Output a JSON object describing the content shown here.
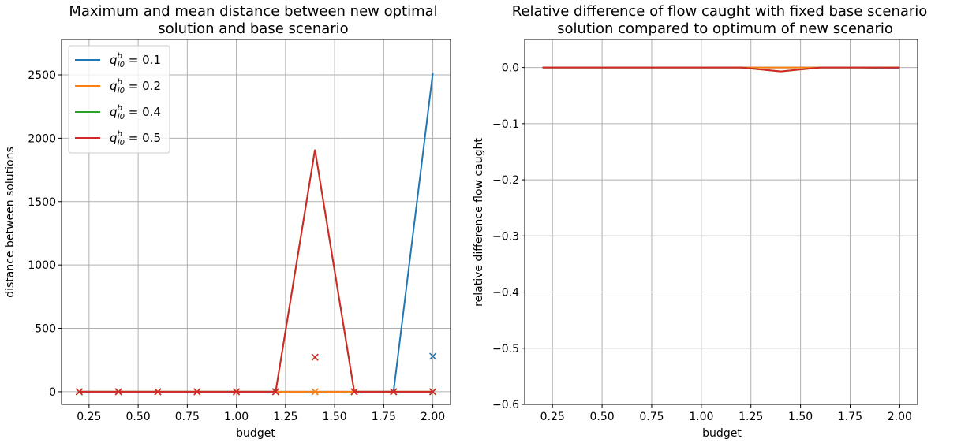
{
  "chart_data": [
    {
      "type": "line",
      "title": [
        "Maximum and mean distance between new optimal",
        "solution and base scenario"
      ],
      "xlabel": "budget",
      "ylabel": "distance between solutions",
      "xlim": [
        0.11,
        2.09
      ],
      "ylim": [
        -100,
        2780
      ],
      "xticks": [
        0.25,
        0.5,
        0.75,
        1.0,
        1.25,
        1.5,
        1.75,
        2.0
      ],
      "xtick_labels": [
        "0.25",
        "0.50",
        "0.75",
        "1.00",
        "1.25",
        "1.50",
        "1.75",
        "2.00"
      ],
      "yticks": [
        0,
        500,
        1000,
        1500,
        2000,
        2500
      ],
      "ytick_labels": [
        "0",
        "500",
        "1000",
        "1500",
        "2000",
        "2500"
      ],
      "grid": true,
      "legend_position": "top-left",
      "x": [
        0.2,
        0.4,
        0.6,
        0.8,
        1.0,
        1.2,
        1.4,
        1.6,
        1.8,
        2.0
      ],
      "series": [
        {
          "name": "0.1",
          "color": "#1f77b4",
          "max_values": [
            0,
            0,
            0,
            0,
            0,
            0,
            0,
            0,
            0,
            2515
          ],
          "mean_values": [
            0,
            0,
            0,
            0,
            0,
            0,
            0,
            0,
            0,
            280
          ]
        },
        {
          "name": "0.2",
          "color": "#ff7f0e",
          "max_values": [
            0,
            0,
            0,
            0,
            0,
            0,
            0,
            0,
            0,
            0
          ],
          "mean_values": [
            0,
            0,
            0,
            0,
            0,
            0,
            0,
            0,
            0,
            0
          ]
        },
        {
          "name": "0.4",
          "color": "#2ca02c",
          "max_values": [
            0,
            0,
            0,
            0,
            0,
            0,
            1910,
            0,
            0,
            0
          ],
          "mean_values": [
            0,
            0,
            0,
            0,
            0,
            0,
            272,
            0,
            0,
            0
          ]
        },
        {
          "name": "0.5",
          "color": "#d62728",
          "max_values": [
            0,
            0,
            0,
            0,
            0,
            0,
            1910,
            0,
            0,
            0
          ],
          "mean_values": [
            0,
            0,
            0,
            0,
            0,
            0,
            272,
            0,
            0,
            0
          ]
        }
      ]
    },
    {
      "type": "line",
      "title": [
        "Relative difference of flow caught with fixed base scenario",
        "solution compared to optimum of new scenario"
      ],
      "xlabel": "budget",
      "ylabel": "relative difference flow caught",
      "xlim": [
        0.11,
        2.09
      ],
      "ylim": [
        -0.6,
        0.05
      ],
      "xticks": [
        0.25,
        0.5,
        0.75,
        1.0,
        1.25,
        1.5,
        1.75,
        2.0
      ],
      "xtick_labels": [
        "0.25",
        "0.50",
        "0.75",
        "1.00",
        "1.25",
        "1.50",
        "1.75",
        "2.00"
      ],
      "yticks": [
        0.0,
        -0.1,
        -0.2,
        -0.3,
        -0.4,
        -0.5,
        -0.6
      ],
      "ytick_labels": [
        "0.0",
        "−0.1",
        "−0.2",
        "−0.3",
        "−0.4",
        "−0.5",
        "−0.6"
      ],
      "grid": true,
      "x": [
        0.2,
        0.4,
        0.6,
        0.8,
        1.0,
        1.2,
        1.4,
        1.6,
        1.8,
        2.0
      ],
      "series": [
        {
          "color": "#1f77b4",
          "values": [
            0,
            0,
            0,
            0,
            0,
            0,
            0,
            0,
            0,
            -0.002
          ]
        },
        {
          "color": "#ff7f0e",
          "values": [
            0,
            0,
            0,
            0,
            0,
            0,
            0,
            0,
            0,
            0
          ]
        },
        {
          "color": "#2ca02c",
          "values": [
            0,
            0,
            0,
            0,
            0,
            0,
            -0.007,
            0,
            0,
            0
          ]
        },
        {
          "color": "#d62728",
          "values": [
            0,
            0,
            0,
            0,
            0,
            0,
            -0.007,
            0,
            0,
            0
          ]
        }
      ]
    }
  ]
}
